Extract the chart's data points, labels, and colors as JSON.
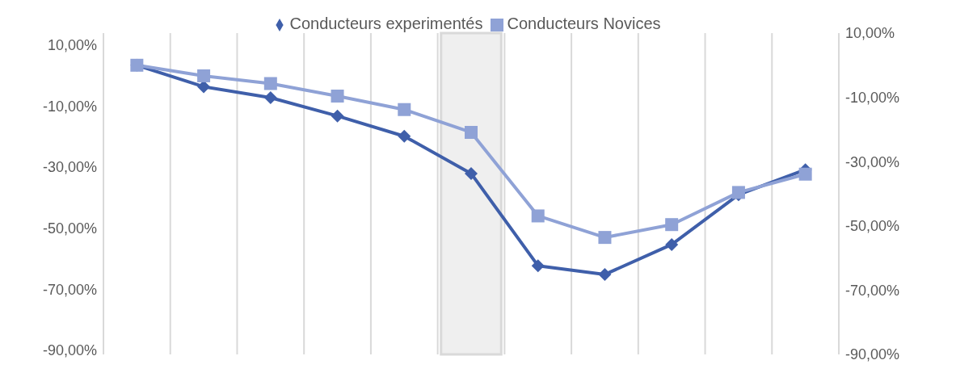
{
  "chart_data": {
    "type": "line",
    "categories": [
      null,
      null,
      null,
      null,
      null,
      null,
      null,
      null,
      null,
      null,
      null
    ],
    "series": [
      {
        "name": "Conducteurs experimentés",
        "color": "#3f5faa",
        "marker": "diamond",
        "axis": "y2",
        "values": [
          0,
          -6.7,
          -10.1,
          -15.8,
          -22.1,
          -33.7,
          -62.4,
          -65.1,
          -55.8,
          -40.3,
          -32.5
        ]
      },
      {
        "name": "Conducteurs Novices",
        "color": "#8fa2d6",
        "marker": "square",
        "axis": "y2",
        "values": [
          0,
          -3.3,
          -5.7,
          -9.6,
          -13.8,
          -20.9,
          -46.9,
          -53.6,
          -49.6,
          -39.6,
          -33.9
        ]
      }
    ],
    "ylim": [
      -91.3,
      13.9
    ],
    "yticks": [
      {
        "value": 10,
        "label": "10,00%"
      },
      {
        "value": -10,
        "label": "-10,00%"
      },
      {
        "value": -30,
        "label": "-30,00%"
      },
      {
        "value": -50,
        "label": "-50,00%"
      },
      {
        "value": -70,
        "label": "-70,00%"
      },
      {
        "value": -90,
        "label": "-90,00%"
      }
    ],
    "y2lim": [
      -90,
      10
    ],
    "y2ticks": [
      {
        "value": 10,
        "label": "10,00%"
      },
      {
        "value": -10,
        "label": "-10,00%"
      },
      {
        "value": -30,
        "label": "-30,00%"
      },
      {
        "value": -50,
        "label": "-50,00%"
      },
      {
        "value": -70,
        "label": "-70,00%"
      },
      {
        "value": -90,
        "label": "-90,00%"
      }
    ],
    "grid": "x",
    "legend": "top",
    "tick_labels": "y"
  }
}
